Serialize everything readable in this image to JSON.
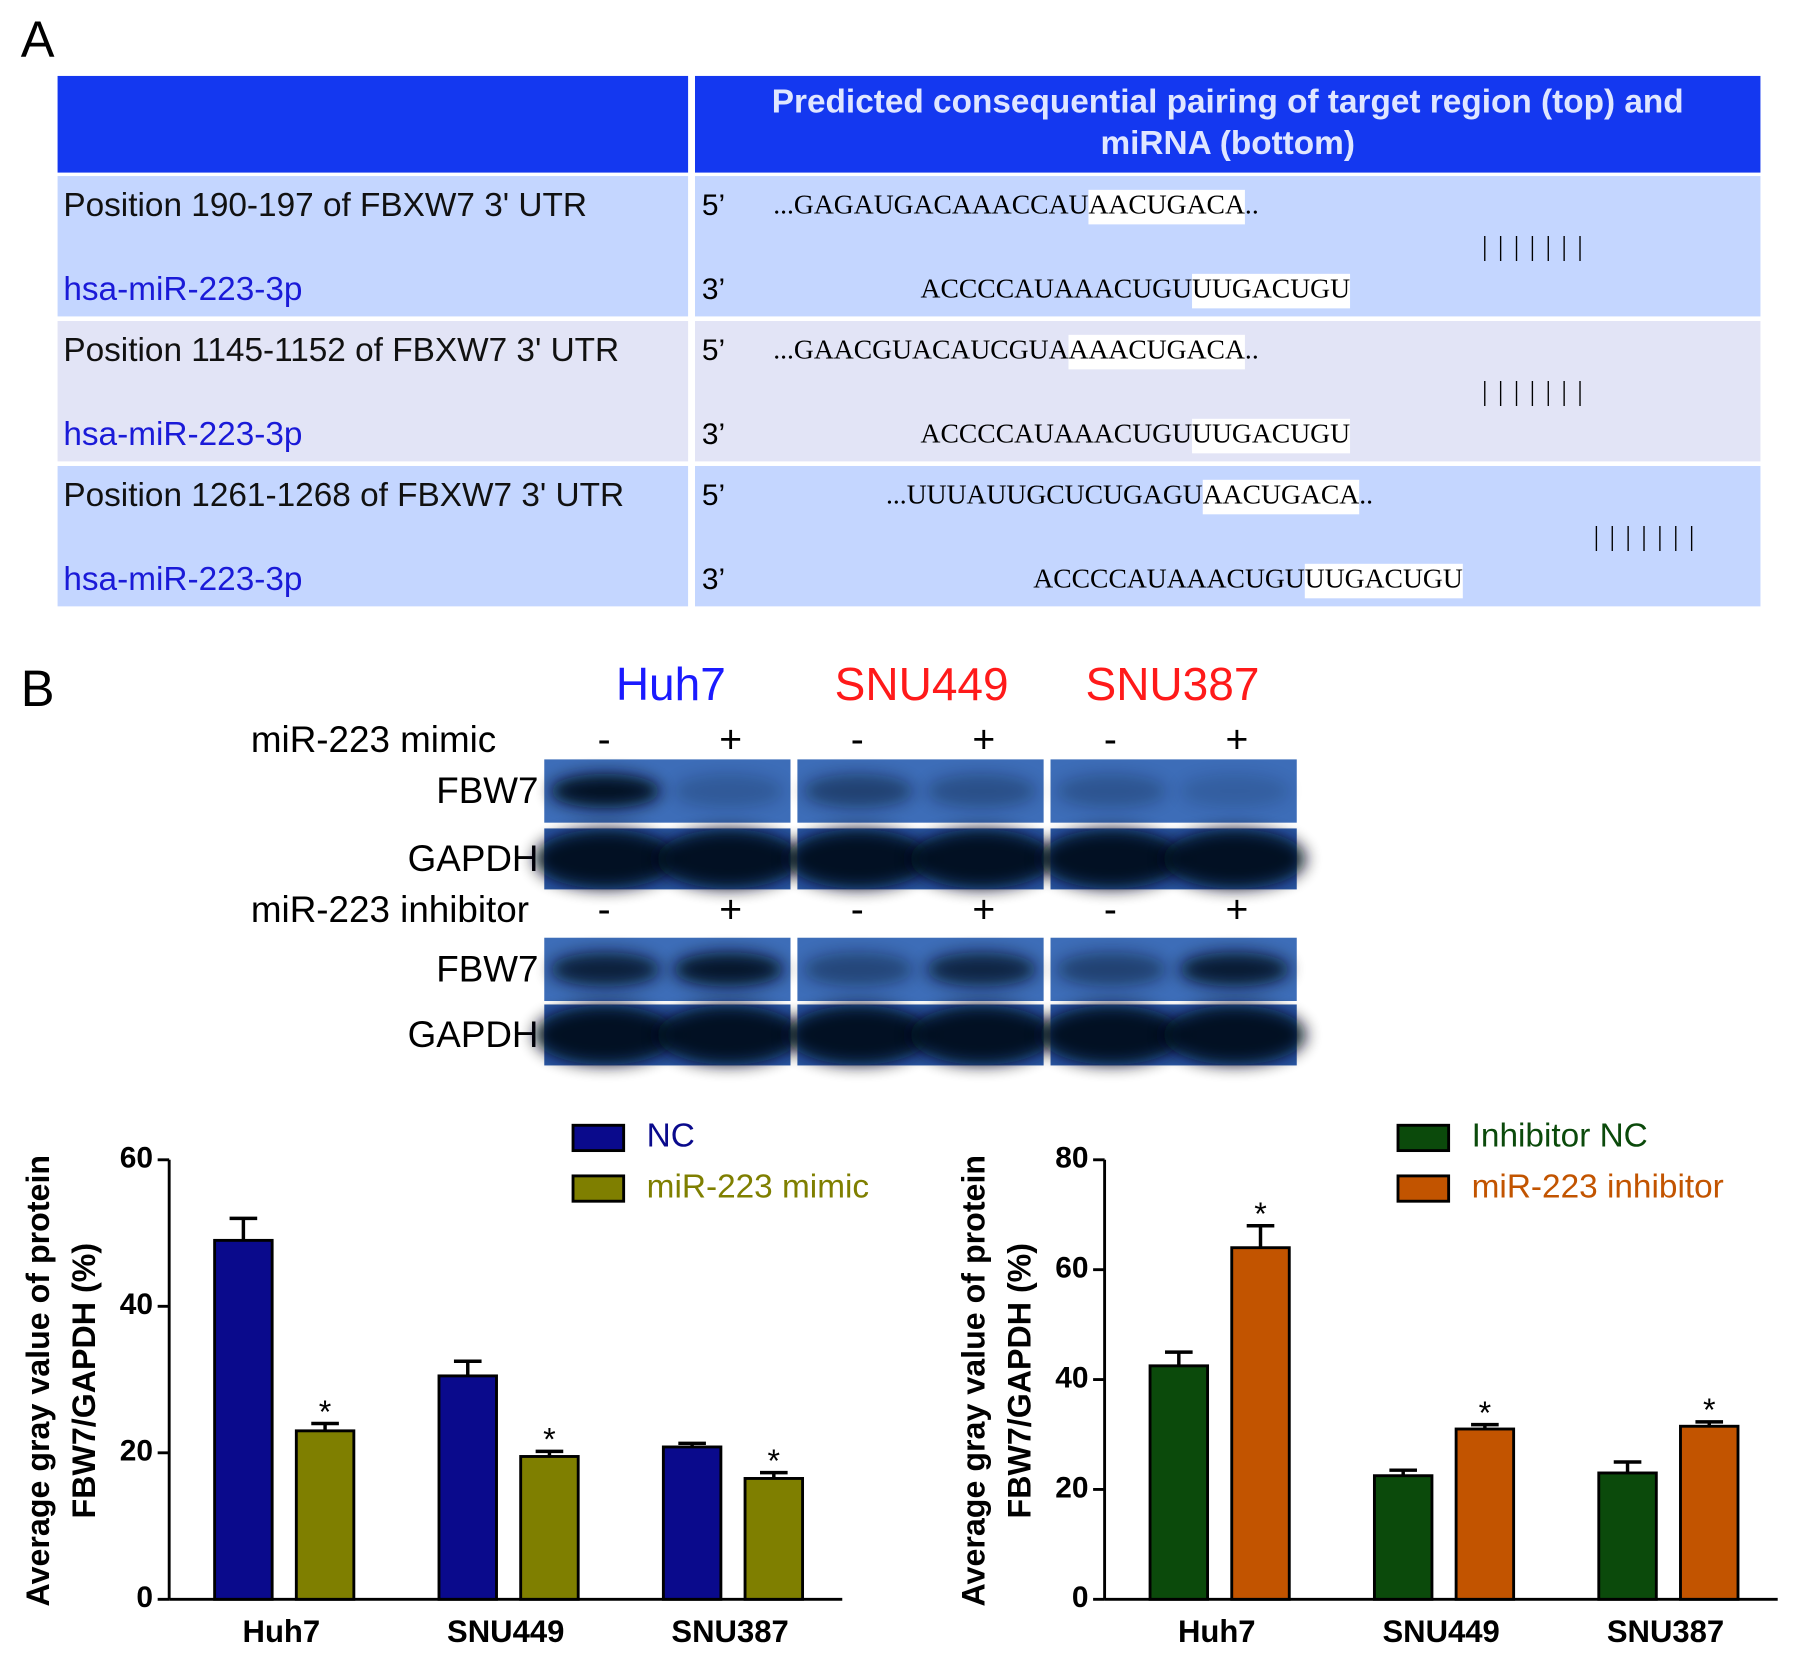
{
  "panel_a": {
    "label": "A",
    "header": [
      "Predicted consequential pairing of target region (top) and",
      "miRNA (bottom)"
    ],
    "rows": [
      {
        "position": "Position 190-197 of FBXW7 3' UTR",
        "mirna": "hsa-miR-223-3p",
        "end5": "5’",
        "end3": "3’",
        "target": [
          "...GAGAUGACAAACCAU",
          "AACUGACA",
          ".."
        ],
        "pairing": "|||||||",
        "mirna_seq": [
          "ACCCCAUAAACUGU",
          "UUGACUGU"
        ]
      },
      {
        "position": "Position 1145-1152 of FBXW7 3' UTR",
        "mirna": "hsa-miR-223-3p",
        "end5": "5’",
        "end3": "3’",
        "target": [
          "...GAACGUACAUCGUA",
          "AAACUGACA",
          ".."
        ],
        "pairing": "|||||||",
        "mirna_seq": [
          "ACCCCAUAAACUGU",
          "UUGACUGU"
        ]
      },
      {
        "position": "Position 1261-1268 of FBXW7 3' UTR",
        "mirna": "hsa-miR-223-3p",
        "end5": "5’",
        "end3": "3’",
        "target": [
          "...UUUAUUGCUCUGAGU",
          "AACUGACA",
          ".."
        ],
        "pairing": "|||||||",
        "mirna_seq": [
          "ACCCCAUAAACUGU",
          "UUGACUGU"
        ]
      }
    ]
  },
  "panel_b": {
    "label": "B",
    "cell_lines": [
      "Huh7",
      "SNU449",
      "SNU387"
    ],
    "cell_line_colors": [
      "#1a1aff",
      "#ff1a1a",
      "#ff1a1a"
    ],
    "conditions": [
      {
        "name": "miR-223 mimic",
        "signs": [
          "-",
          "+",
          "-",
          "+",
          "-",
          "+"
        ],
        "bands": [
          "FBW7",
          "GAPDH"
        ]
      },
      {
        "name": "miR-223 inhibitor",
        "signs": [
          "-",
          "+",
          "-",
          "+",
          "-",
          "+"
        ],
        "bands": [
          "FBW7",
          "GAPDH"
        ]
      }
    ]
  },
  "chart_data": [
    {
      "type": "bar",
      "ylabel": [
        "Average gray value of protein",
        "FBW7/GAPDH (%)"
      ],
      "categories": [
        "Huh7",
        "SNU449",
        "SNU387"
      ],
      "series": [
        {
          "name": "NC",
          "color": "#0a0a8c",
          "values": [
            49,
            30.5,
            20.8
          ],
          "errors": [
            3,
            2,
            0.5
          ]
        },
        {
          "name": "miR-223 mimic",
          "color": "#7f7f00",
          "values": [
            23,
            19.5,
            16.5
          ],
          "errors": [
            1,
            0.7,
            0.8
          ],
          "significance": [
            "*",
            "*",
            "*"
          ]
        }
      ],
      "ylim": [
        0,
        60
      ],
      "yticks": [
        0,
        20,
        40,
        60
      ]
    },
    {
      "type": "bar",
      "ylabel": [
        "Average gray value of protein",
        "FBW7/GAPDH (%)"
      ],
      "categories": [
        "Huh7",
        "SNU449",
        "SNU387"
      ],
      "series": [
        {
          "name": "Inhibitor NC",
          "color": "#0b4a0b",
          "values": [
            42.5,
            22.5,
            23
          ],
          "errors": [
            2.5,
            1,
            2
          ]
        },
        {
          "name": "miR-223 inhibitor",
          "color": "#c25400",
          "values": [
            64,
            31,
            31.5
          ],
          "errors": [
            4,
            0.8,
            0.8
          ],
          "significance": [
            "*",
            "*",
            "*"
          ]
        }
      ],
      "ylim": [
        0,
        80
      ],
      "yticks": [
        0,
        20,
        40,
        60,
        80
      ]
    }
  ]
}
